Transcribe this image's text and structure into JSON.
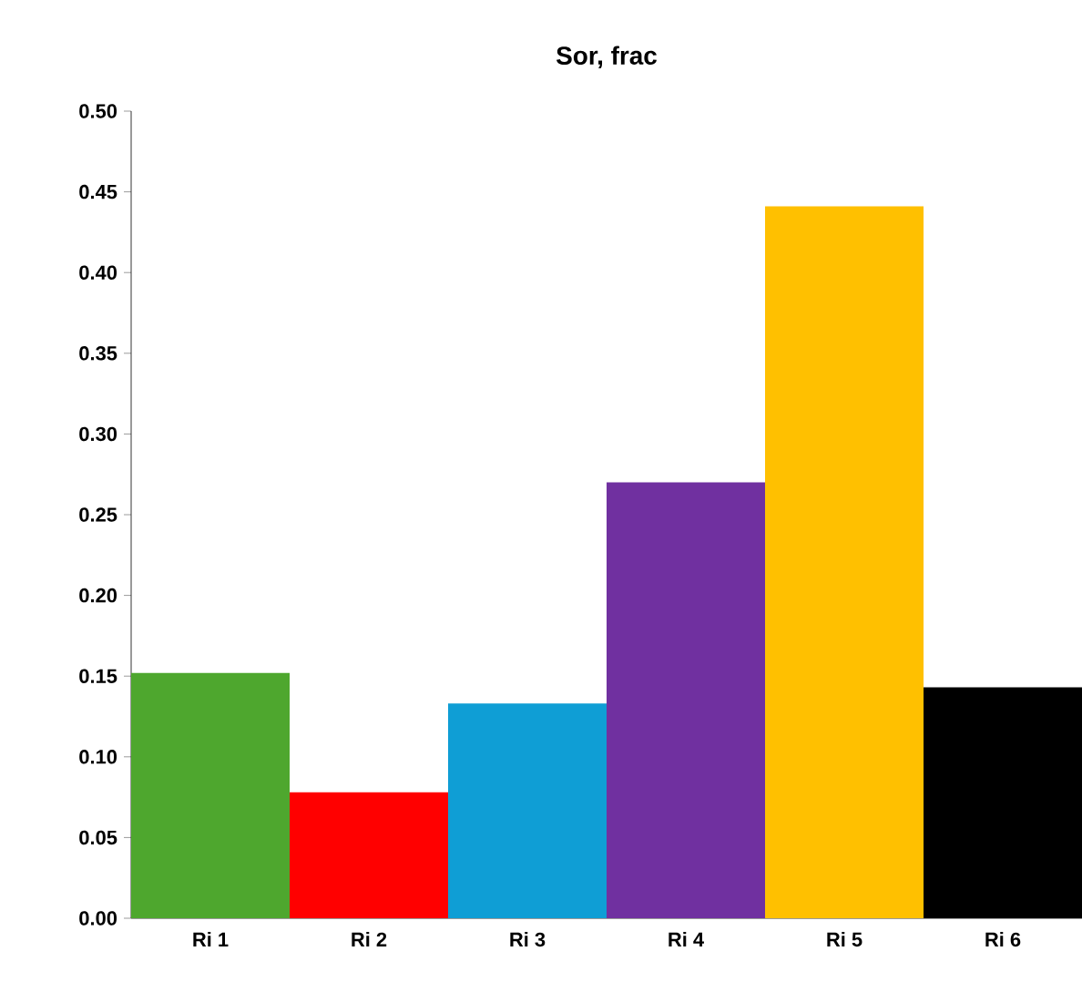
{
  "chart_data": {
    "type": "bar",
    "title": "Sor, frac",
    "categories": [
      "Ri 1",
      "Ri 2",
      "Ri 3",
      "Ri 4",
      "Ri 5",
      "Ri 6"
    ],
    "values": [
      0.152,
      0.078,
      0.133,
      0.27,
      0.441,
      0.143
    ],
    "colors": [
      "#4ea72e",
      "#ff0000",
      "#0f9ed5",
      "#7030a0",
      "#ffc000",
      "#000000"
    ],
    "ylim": [
      0,
      0.5
    ],
    "yticks": [
      {
        "value": 0,
        "label": "0.00"
      },
      {
        "value": 0.05,
        "label": "0.05"
      },
      {
        "value": 0.1,
        "label": "0.10"
      },
      {
        "value": 0.15,
        "label": "0.15"
      },
      {
        "value": 0.2,
        "label": "0.20"
      },
      {
        "value": 0.25,
        "label": "0.25"
      },
      {
        "value": 0.3,
        "label": "0.30"
      },
      {
        "value": 0.35,
        "label": "0.35"
      },
      {
        "value": 0.4,
        "label": "0.40"
      },
      {
        "value": 0.45,
        "label": "0.45"
      },
      {
        "value": 0.5,
        "label": "0.50"
      }
    ],
    "grid": false
  }
}
